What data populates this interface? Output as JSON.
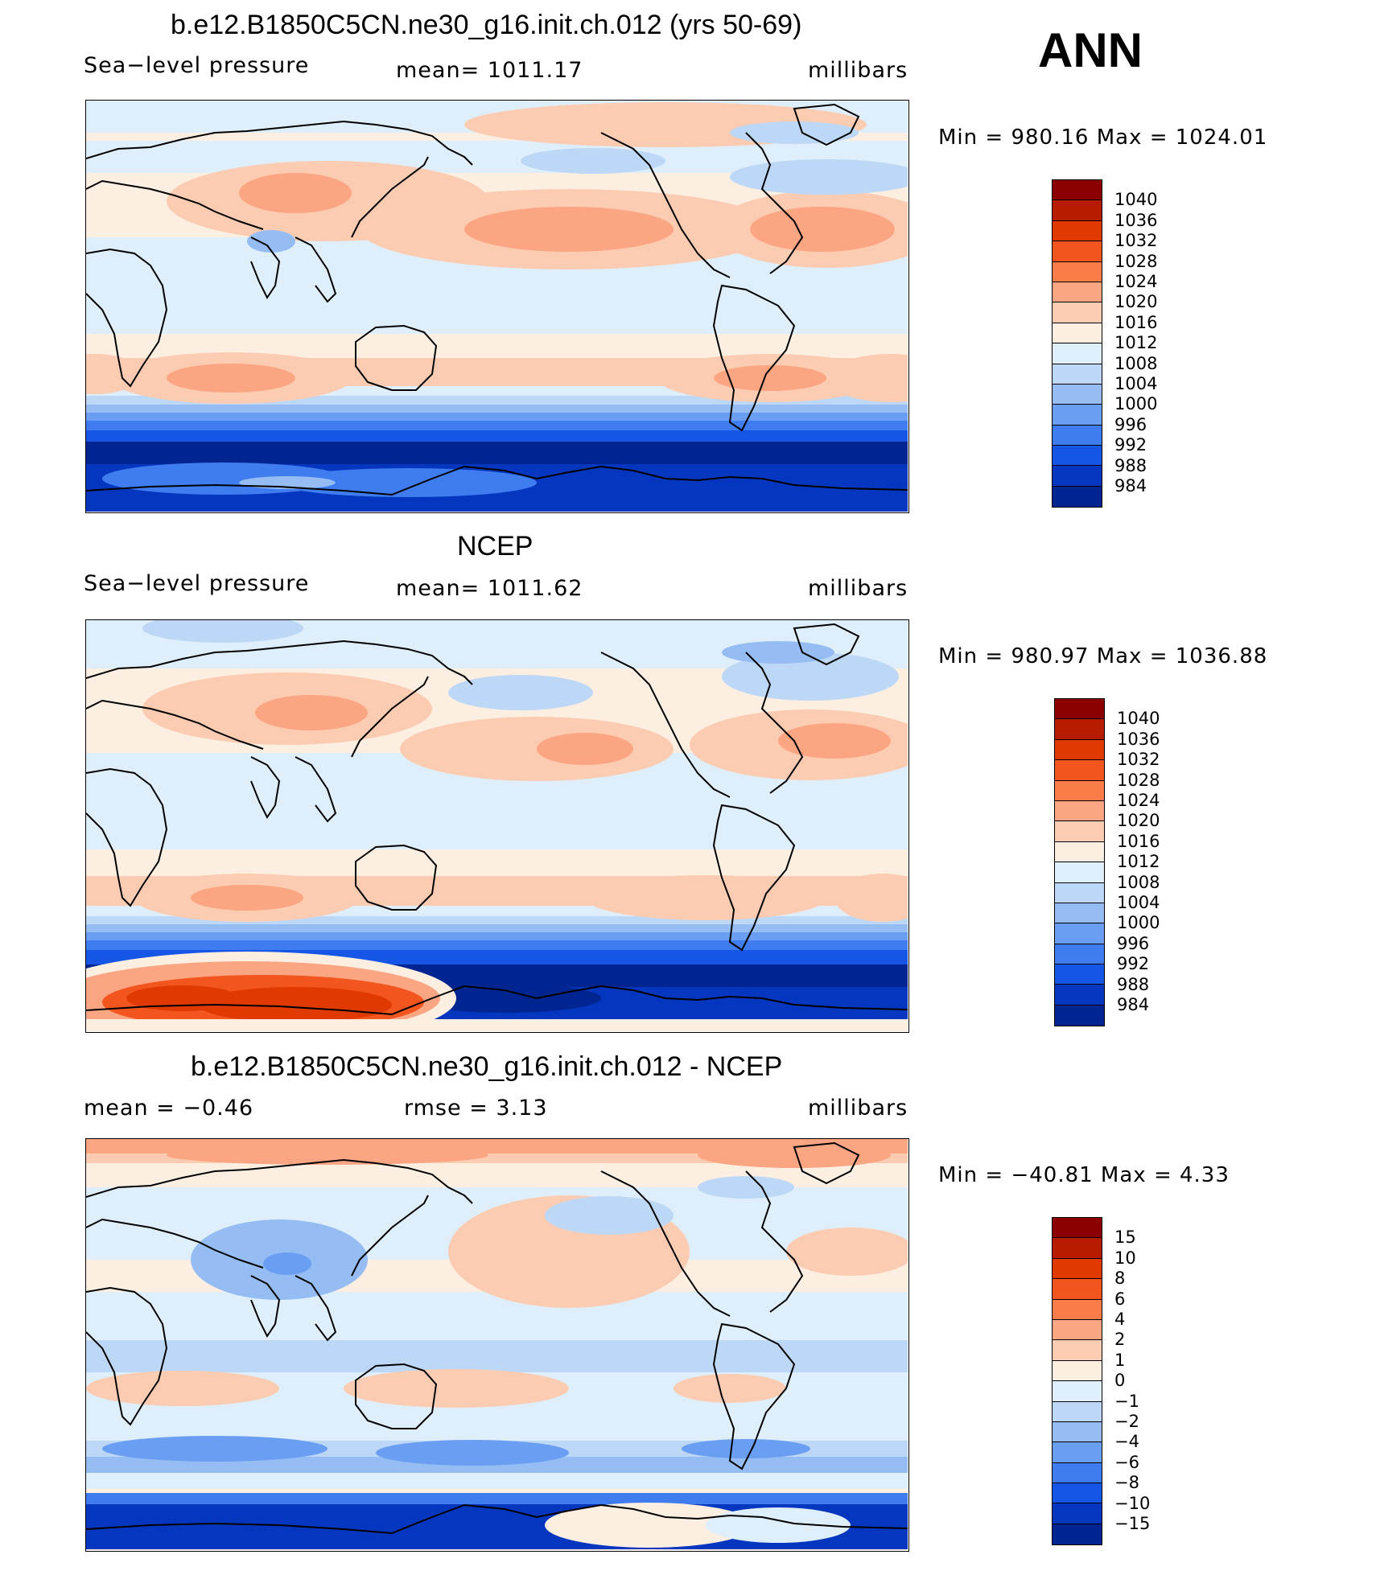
{
  "season": "ANN",
  "panels": [
    {
      "title": "b.e12.B1850C5CN.ne30_g16.init.ch.012 (yrs 50-69)",
      "left_label": "Sea−level pressure",
      "center_label": "mean=  1011.17",
      "right_label": "millibars",
      "minmax": "Min  =  980.16  Max  =  1024.01",
      "colorbar": {
        "colors": [
          "#8b0000",
          "#b81c00",
          "#e03a00",
          "#f2551e",
          "#fb7c48",
          "#fca582",
          "#fcccb2",
          "#fdeee2",
          "#deeefa",
          "#bcd8f6",
          "#95bdf3",
          "#6a9ef2",
          "#3e7cf0",
          "#1656e6",
          "#0536bf",
          "#002590"
        ],
        "labels": [
          "1040",
          "1036",
          "1032",
          "1028",
          "1024",
          "1020",
          "1016",
          "1012",
          "1008",
          "1004",
          "1000",
          "996",
          "992",
          "988",
          "984"
        ]
      },
      "field": "model"
    },
    {
      "title": "NCEP",
      "left_label": "Sea−level pressure",
      "center_label": "mean=  1011.62",
      "right_label": "millibars",
      "minmax": "Min  =  980.97  Max  =  1036.88",
      "colorbar": {
        "colors": [
          "#8b0000",
          "#b81c00",
          "#e03a00",
          "#f2551e",
          "#fb7c48",
          "#fca582",
          "#fcccb2",
          "#fdeee2",
          "#deeefa",
          "#bcd8f6",
          "#95bdf3",
          "#6a9ef2",
          "#3e7cf0",
          "#1656e6",
          "#0536bf",
          "#002590"
        ],
        "labels": [
          "1040",
          "1036",
          "1032",
          "1028",
          "1024",
          "1020",
          "1016",
          "1012",
          "1008",
          "1004",
          "1000",
          "996",
          "992",
          "988",
          "984"
        ]
      },
      "field": "obs"
    },
    {
      "title": "b.e12.B1850C5CN.ne30_g16.init.ch.012 - NCEP",
      "left_label": "mean  =    −0.46",
      "center_label": "rmse  =     3.13",
      "right_label": "millibars",
      "minmax": "Min  =  −40.81  Max  =     4.33",
      "colorbar": {
        "colors": [
          "#8b0000",
          "#b81c00",
          "#e03a00",
          "#f2551e",
          "#fb7c48",
          "#fca582",
          "#fcccb2",
          "#fdeee2",
          "#deeefa",
          "#bcd8f6",
          "#95bdf3",
          "#6a9ef2",
          "#3e7cf0",
          "#1656e6",
          "#0536bf",
          "#002590"
        ],
        "labels": [
          "15",
          "10",
          "8",
          "6",
          "4",
          "2",
          "1",
          "0",
          "−1",
          "−2",
          "−4",
          "−6",
          "−8",
          "−10",
          "−15"
        ]
      },
      "field": "diff"
    }
  ]
}
